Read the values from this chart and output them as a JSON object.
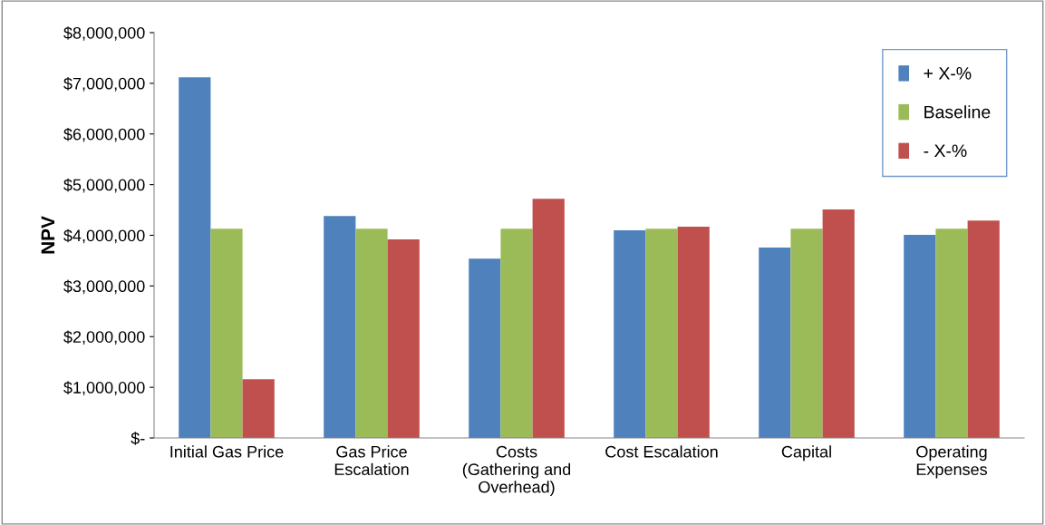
{
  "chart_data": {
    "type": "bar",
    "ylabel": "NPV",
    "categories": [
      "Initial Gas Price",
      "Gas Price\nEscalation",
      "Costs\n(Gathering and\nOverhead)",
      "Cost Escalation",
      "Capital",
      "Operating\nExpenses"
    ],
    "series": [
      {
        "name": "+ X-%",
        "color": "#4f81bd",
        "values": [
          7120000,
          4380000,
          3540000,
          4100000,
          3760000,
          4010000
        ]
      },
      {
        "name": "Baseline",
        "color": "#9bbb59",
        "values": [
          4130000,
          4130000,
          4130000,
          4130000,
          4130000,
          4130000
        ]
      },
      {
        "name": "- X-%",
        "color": "#c0504d",
        "values": [
          1160000,
          3920000,
          4720000,
          4170000,
          4510000,
          4290000
        ]
      }
    ],
    "ylim": [
      0,
      8000000
    ],
    "yticks": [
      {
        "value": 0,
        "label": "$-"
      },
      {
        "value": 1000000,
        "label": "$1,000,000"
      },
      {
        "value": 2000000,
        "label": "$2,000,000"
      },
      {
        "value": 3000000,
        "label": "$3,000,000"
      },
      {
        "value": 4000000,
        "label": "$4,000,000"
      },
      {
        "value": 5000000,
        "label": "$5,000,000"
      },
      {
        "value": 6000000,
        "label": "$6,000,000"
      },
      {
        "value": 7000000,
        "label": "$7,000,000"
      },
      {
        "value": 8000000,
        "label": "$8,000,000"
      }
    ],
    "grid": false,
    "legend": "top right"
  }
}
